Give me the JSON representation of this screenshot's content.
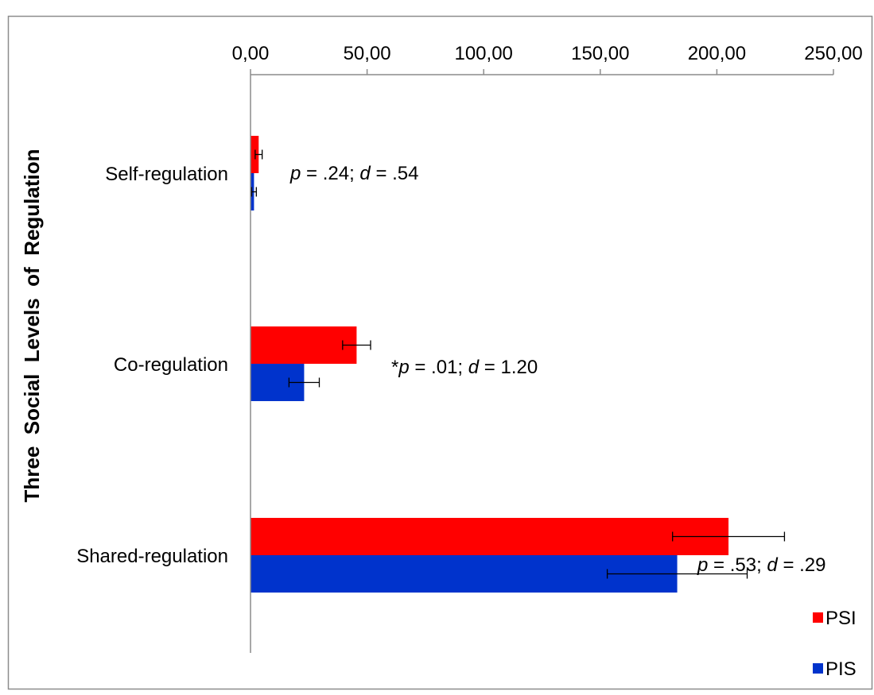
{
  "chart_data": {
    "type": "bar",
    "orientation": "horizontal",
    "title": "",
    "xlabel": "",
    "ylabel": "Three  Social  Levels  of  Regulation",
    "xlim": [
      0,
      250
    ],
    "x_ticks": [
      0,
      50,
      100,
      150,
      200,
      250
    ],
    "x_tick_labels": [
      "0,00",
      "50,00",
      "100,00",
      "150,00",
      "200,00",
      "250,00"
    ],
    "x_axis_position": "top",
    "grid": false,
    "legend_position": "bottom-right",
    "categories": [
      "Self-regulation",
      "Co-regulation",
      "Shared-regulation"
    ],
    "series": [
      {
        "name": "PSI",
        "color": "#ff0000",
        "values": [
          3.5,
          45.5,
          205
        ],
        "error": [
          1.5,
          6,
          24
        ]
      },
      {
        "name": "PIS",
        "color": "#0033cc",
        "values": [
          1.5,
          23,
          183
        ],
        "error": [
          1,
          6.5,
          30
        ]
      }
    ],
    "annotations": [
      {
        "category": "Self-regulation",
        "star": "",
        "p": ".24",
        "d": ".54"
      },
      {
        "category": "Co-regulation",
        "star": "*",
        "p": ".01",
        "d": "1.20"
      },
      {
        "category": "Shared-regulation",
        "star": "",
        "p": ".53",
        "d": ".29"
      }
    ],
    "annotation_p_symbol": "p",
    "annotation_d_symbol": "d"
  }
}
